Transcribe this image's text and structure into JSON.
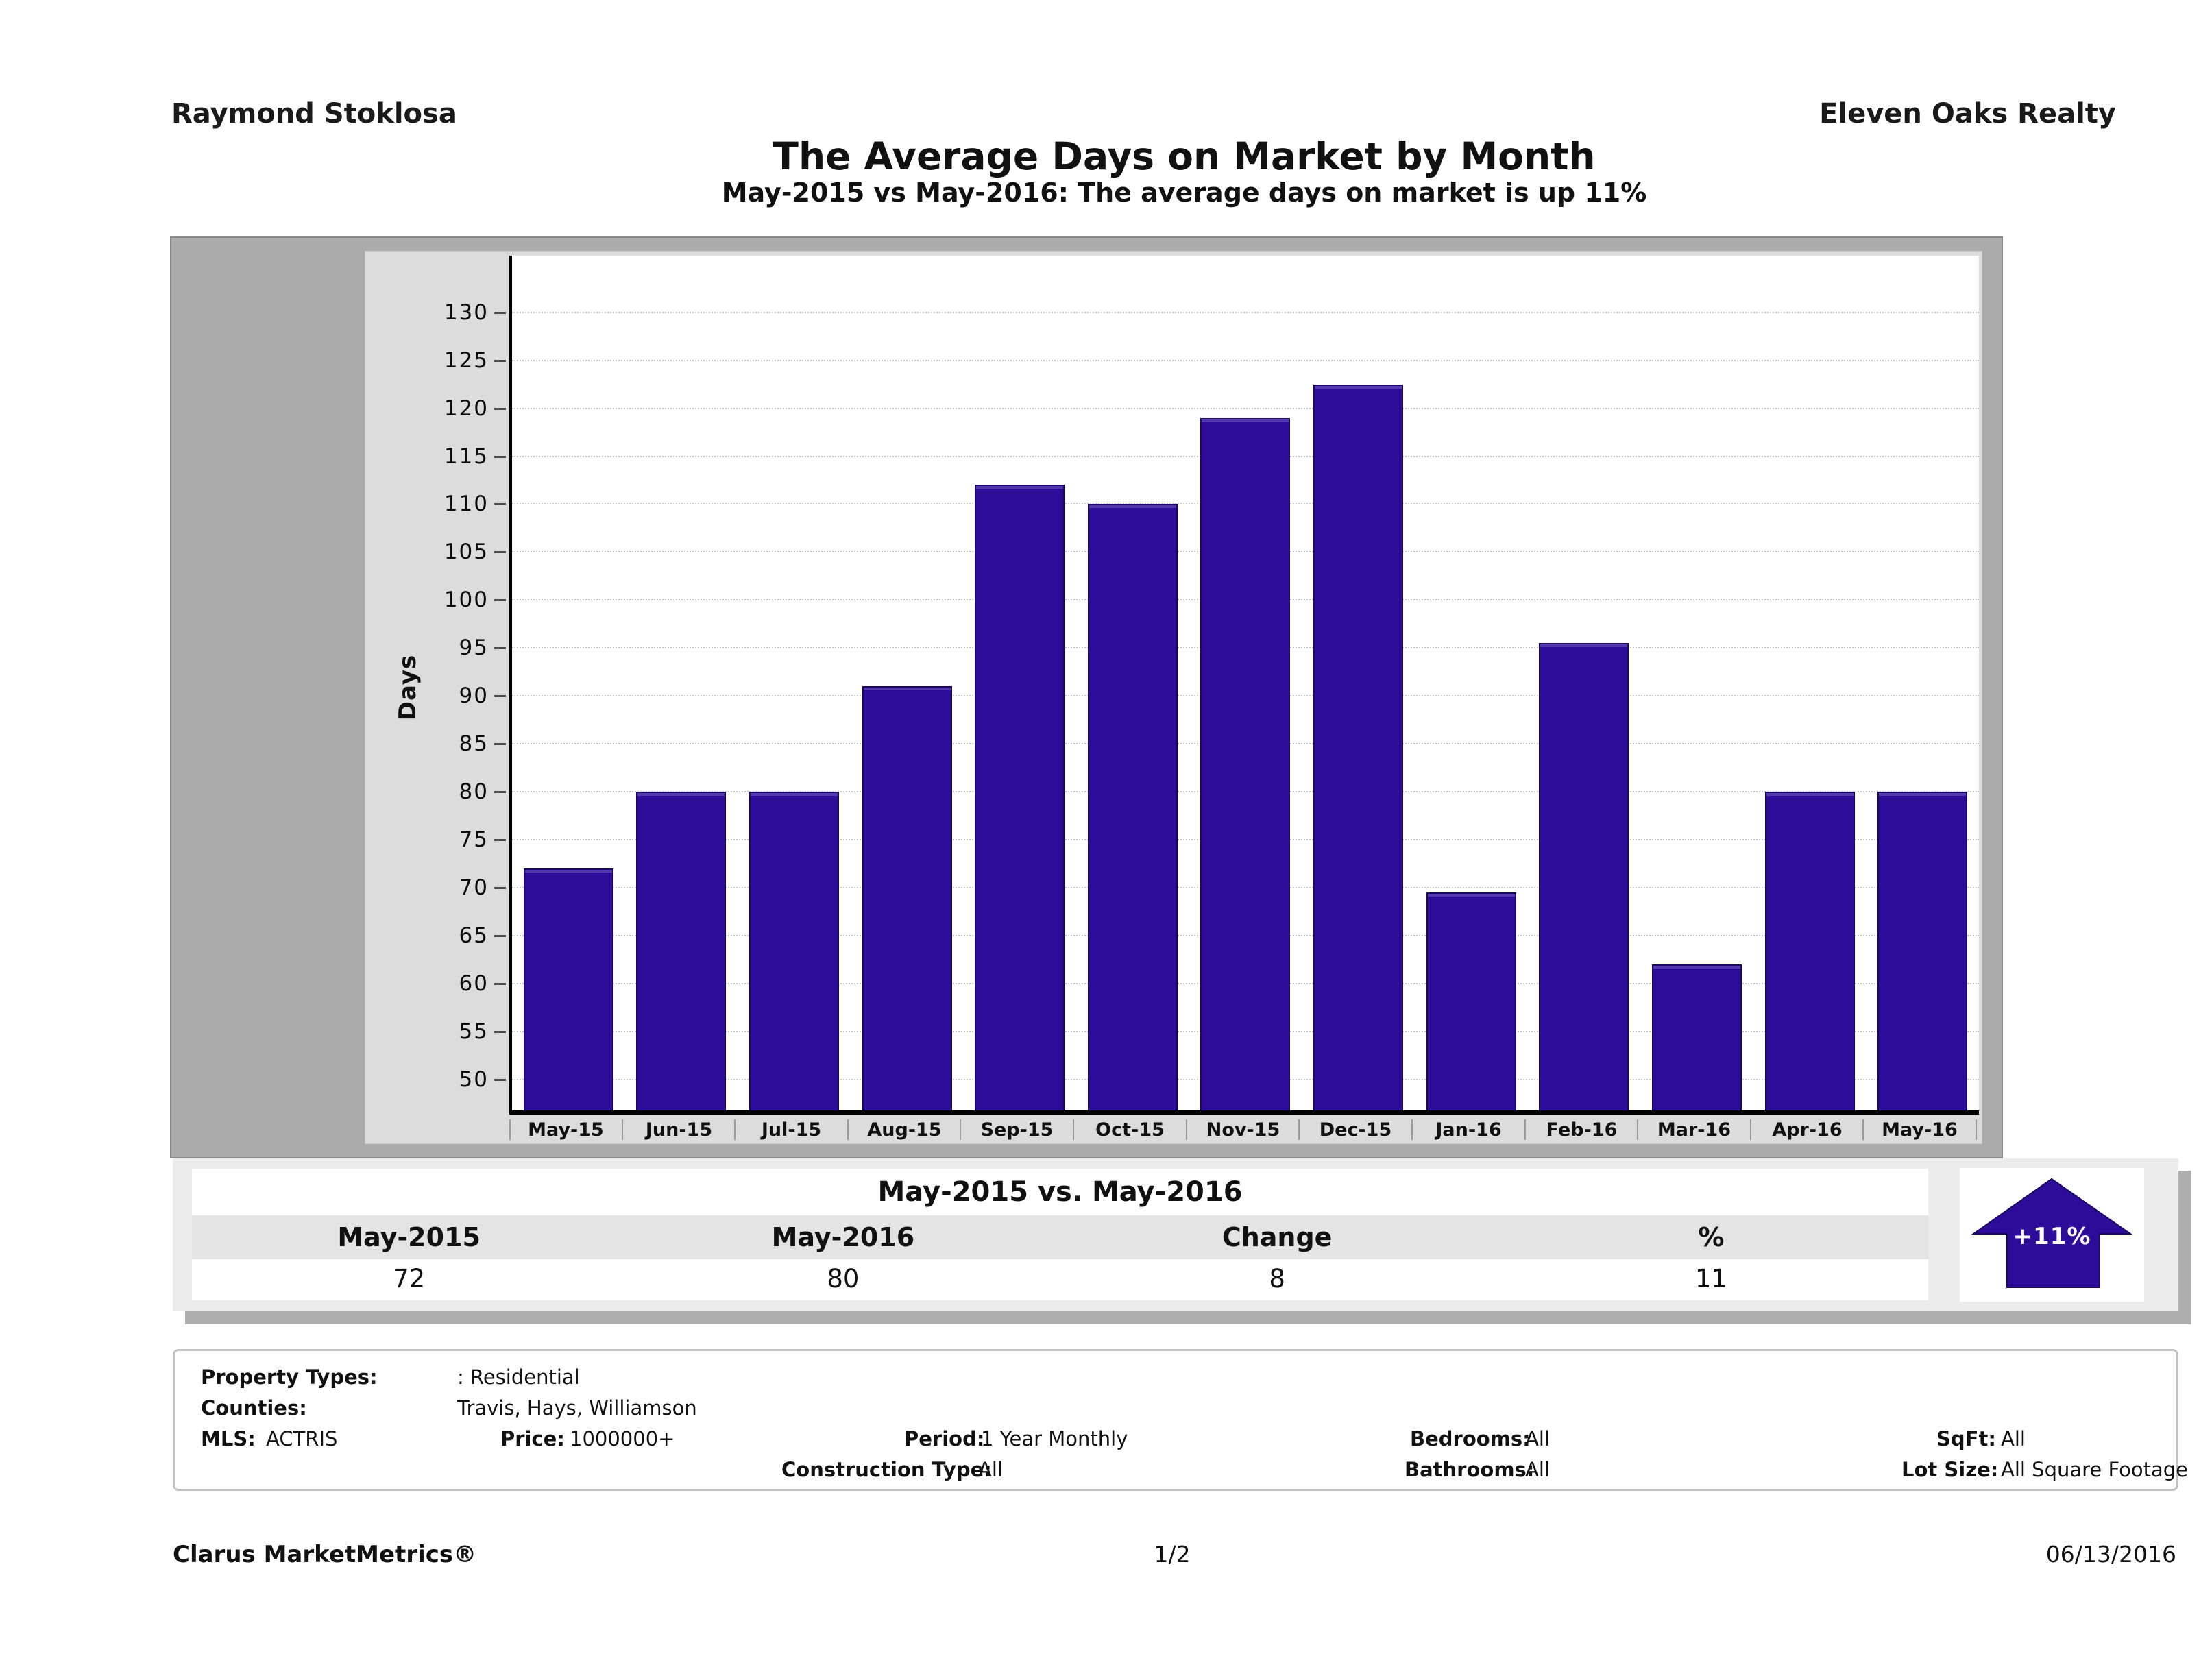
{
  "colors": {
    "accent": "#2e0c9a"
  },
  "header": {
    "agent": "Raymond Stoklosa",
    "company": "Eleven Oaks Realty",
    "title": "The Average Days on Market by Month",
    "subtitle": "May-2015 vs May-2016: The average days on market is up 11%"
  },
  "chart_data": {
    "type": "bar",
    "title": "The Average Days on Market by Month",
    "xlabel": "",
    "ylabel": "Days",
    "categories": [
      "May-15",
      "Jun-15",
      "Jul-15",
      "Aug-15",
      "Sep-15",
      "Oct-15",
      "Nov-15",
      "Dec-15",
      "Jan-16",
      "Feb-16",
      "Mar-16",
      "Apr-16",
      "May-16"
    ],
    "values": [
      72,
      80,
      80,
      91,
      112,
      110,
      119,
      122.5,
      69.5,
      95.5,
      62,
      80,
      80
    ],
    "ylim": [
      46.8,
      135.9
    ],
    "yticks": [
      50,
      55,
      60,
      65,
      70,
      75,
      80,
      85,
      90,
      95,
      100,
      105,
      110,
      115,
      120,
      125,
      130
    ],
    "grid": "horizontal-dotted",
    "legend": "none",
    "bar_color": "#2e0c9a"
  },
  "summary": {
    "title": "May-2015 vs. May-2016",
    "columns": [
      "May-2015",
      "May-2016",
      "Change",
      "%"
    ],
    "values": [
      "72",
      "80",
      "8",
      "11"
    ],
    "badge_label": "+11%"
  },
  "details": {
    "property_types": {
      "label": "Property Types:",
      "value": ": Residential"
    },
    "counties": {
      "label": "Counties:",
      "value": "Travis, Hays, Williamson"
    },
    "mls": {
      "label": "MLS:",
      "value": "ACTRIS"
    },
    "price": {
      "label": "Price:",
      "value": "1000000+"
    },
    "period": {
      "label": "Period:",
      "value": "1 Year Monthly"
    },
    "construction_type": {
      "label": "Construction Type:",
      "value": "All"
    },
    "bedrooms": {
      "label": "Bedrooms:",
      "value": "All"
    },
    "bathrooms": {
      "label": "Bathrooms:",
      "value": "All"
    },
    "sqft": {
      "label": "SqFt:",
      "value": "All"
    },
    "lot_size": {
      "label": "Lot Size:",
      "value": "All Square Footage"
    }
  },
  "footer": {
    "brand": "Clarus MarketMetrics®",
    "page": "1/2",
    "date": "06/13/2016"
  }
}
